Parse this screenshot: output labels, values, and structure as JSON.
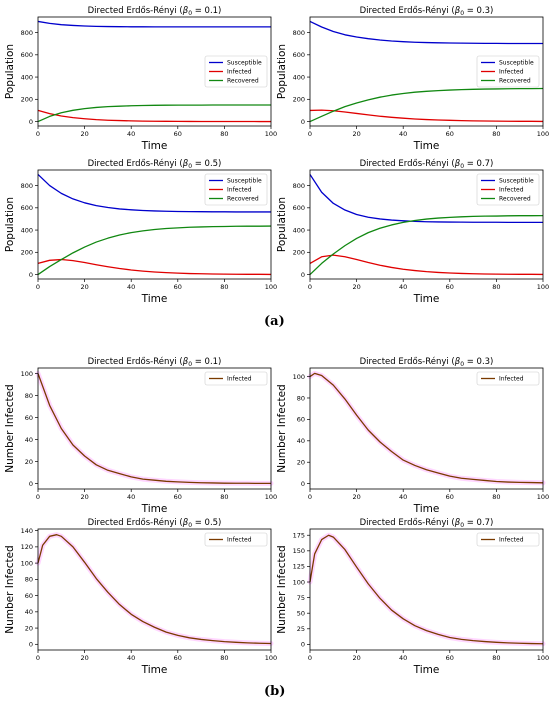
{
  "figure_labels": {
    "a": "(a)",
    "b": "(b)"
  },
  "colors": {
    "Susceptible": "#0000cc",
    "Infected": "#e00000",
    "Recovered": "#118811",
    "infected_b": "#7a3a00",
    "glow": "#ffccff"
  },
  "chart_data": [
    {
      "type": "line",
      "panel": "a",
      "title": "Directed Erdős-Rényi (β0 = 0.1)",
      "title_prefix": "Directed Erdős-Rényi (",
      "beta": "= 0.1",
      "title_suffix": ")",
      "xlabel": "Time",
      "ylabel": "Population",
      "xlim": [
        0,
        100
      ],
      "ylim": [
        -40,
        940
      ],
      "xticks": [
        0,
        20,
        40,
        60,
        80,
        100
      ],
      "yticks": [
        0,
        200,
        400,
        600,
        800
      ],
      "legend": "center-right",
      "x": [
        0,
        5,
        10,
        15,
        20,
        25,
        30,
        35,
        40,
        45,
        50,
        55,
        60,
        65,
        70,
        75,
        80,
        85,
        90,
        95,
        100
      ],
      "series": [
        {
          "name": "Susceptible",
          "color": "#0000cc",
          "values": [
            900,
            883,
            871,
            864,
            859,
            856,
            854,
            853,
            852,
            852,
            851,
            851,
            851,
            851,
            851,
            851,
            851,
            851,
            851,
            851,
            851
          ]
        },
        {
          "name": "Infected",
          "color": "#e00000",
          "values": [
            100,
            71,
            50,
            35,
            25,
            17,
            12,
            9,
            6,
            4,
            3,
            2,
            1.5,
            1,
            0.7,
            0.5,
            0.3,
            0.2,
            0.2,
            0.1,
            0.1
          ]
        },
        {
          "name": "Recovered",
          "color": "#118811",
          "values": [
            0,
            46,
            79,
            101,
            116,
            127,
            134,
            138,
            142,
            144,
            146,
            147,
            148,
            148,
            148,
            149,
            149,
            149,
            149,
            149,
            149
          ]
        }
      ]
    },
    {
      "type": "line",
      "panel": "a",
      "title": "Directed Erdős-Rényi (β0 = 0.3)",
      "title_prefix": "Directed Erdős-Rényi (",
      "beta": "= 0.3",
      "title_suffix": ")",
      "xlabel": "Time",
      "ylabel": "Population",
      "xlim": [
        0,
        100
      ],
      "ylim": [
        -40,
        940
      ],
      "xticks": [
        0,
        20,
        40,
        60,
        80,
        100
      ],
      "yticks": [
        0,
        200,
        400,
        600,
        800
      ],
      "legend": "center-right",
      "x": [
        0,
        5,
        10,
        15,
        20,
        25,
        30,
        35,
        40,
        45,
        50,
        55,
        60,
        65,
        70,
        75,
        80,
        85,
        90,
        95,
        100
      ],
      "series": [
        {
          "name": "Susceptible",
          "color": "#0000cc",
          "values": [
            900,
            850,
            810,
            780,
            760,
            745,
            733,
            724,
            718,
            713,
            710,
            708,
            706,
            705,
            704,
            703,
            703,
            702,
            702,
            702,
            702
          ]
        },
        {
          "name": "Infected",
          "color": "#e00000",
          "values": [
            100,
            103,
            97,
            86,
            73,
            60,
            48,
            38,
            30,
            23,
            18,
            14,
            11,
            8,
            6,
            5,
            4,
            3,
            2,
            2,
            1
          ]
        },
        {
          "name": "Recovered",
          "color": "#118811",
          "values": [
            0,
            47,
            93,
            134,
            167,
            195,
            219,
            238,
            252,
            264,
            272,
            278,
            283,
            287,
            290,
            292,
            293,
            295,
            296,
            296,
            297
          ]
        }
      ]
    },
    {
      "type": "line",
      "panel": "a",
      "title": "Directed Erdős-Rényi (β0 = 0.5)",
      "title_prefix": "Directed Erdős-Rényi (",
      "beta": "= 0.5",
      "title_suffix": ")",
      "xlabel": "Time",
      "ylabel": "Population",
      "xlim": [
        0,
        100
      ],
      "ylim": [
        -40,
        940
      ],
      "xticks": [
        0,
        20,
        40,
        60,
        80,
        100
      ],
      "yticks": [
        0,
        200,
        400,
        600,
        800
      ],
      "legend": "top-right",
      "x": [
        0,
        5,
        10,
        15,
        20,
        25,
        30,
        35,
        40,
        45,
        50,
        55,
        60,
        65,
        70,
        75,
        80,
        85,
        90,
        95,
        100
      ],
      "series": [
        {
          "name": "Susceptible",
          "color": "#0000cc",
          "values": [
            900,
            800,
            730,
            680,
            645,
            620,
            603,
            590,
            582,
            576,
            572,
            569,
            567,
            566,
            565,
            564,
            564,
            563,
            563,
            563,
            563
          ]
        },
        {
          "name": "Infected",
          "color": "#e00000",
          "values": [
            100,
            128,
            135,
            125,
            108,
            88,
            70,
            54,
            41,
            31,
            23,
            17,
            13,
            9,
            7,
            5,
            4,
            3,
            2,
            2,
            1
          ]
        },
        {
          "name": "Recovered",
          "color": "#118811",
          "values": [
            0,
            72,
            135,
            195,
            247,
            292,
            327,
            356,
            377,
            393,
            405,
            414,
            420,
            425,
            428,
            431,
            432,
            434,
            435,
            435,
            436
          ]
        }
      ]
    },
    {
      "type": "line",
      "panel": "a",
      "title": "Directed Erdős-Rényi (β0 = 0.7)",
      "title_prefix": "Directed Erdős-Rényi (",
      "beta": "= 0.7",
      "title_suffix": ")",
      "xlabel": "Time",
      "ylabel": "Population",
      "xlim": [
        0,
        100
      ],
      "ylim": [
        -40,
        940
      ],
      "xticks": [
        0,
        20,
        40,
        60,
        80,
        100
      ],
      "yticks": [
        0,
        200,
        400,
        600,
        800
      ],
      "legend": "top-right",
      "x": [
        0,
        5,
        10,
        15,
        20,
        25,
        30,
        35,
        40,
        45,
        50,
        55,
        60,
        65,
        70,
        75,
        80,
        85,
        90,
        95,
        100
      ],
      "series": [
        {
          "name": "Susceptible",
          "color": "#0000cc",
          "values": [
            900,
            740,
            640,
            580,
            540,
            515,
            500,
            490,
            483,
            478,
            475,
            473,
            472,
            471,
            470,
            470,
            470,
            469,
            469,
            469,
            469
          ]
        },
        {
          "name": "Infected",
          "color": "#e00000",
          "values": [
            100,
            160,
            175,
            160,
            135,
            108,
            84,
            64,
            48,
            36,
            26,
            19,
            14,
            10,
            7,
            5,
            4,
            3,
            2,
            2,
            1
          ]
        },
        {
          "name": "Recovered",
          "color": "#118811",
          "values": [
            0,
            100,
            185,
            260,
            325,
            377,
            416,
            446,
            469,
            486,
            499,
            508,
            514,
            519,
            523,
            525,
            526,
            528,
            529,
            529,
            530
          ]
        }
      ]
    },
    {
      "type": "line",
      "panel": "b",
      "title": "Directed Erdős-Rényi (β0 = 0.1)",
      "title_prefix": "Directed Erdős-Rényi (",
      "beta": "= 0.1",
      "title_suffix": ")",
      "xlabel": "Time",
      "ylabel": "Number Infected",
      "xlim": [
        0,
        100
      ],
      "ylim": [
        -5,
        105
      ],
      "xticks": [
        0,
        20,
        40,
        60,
        80,
        100
      ],
      "yticks": [
        0,
        20,
        40,
        60,
        80,
        100
      ],
      "legend": "top-right",
      "x": [
        0,
        5,
        10,
        15,
        20,
        25,
        30,
        35,
        40,
        45,
        50,
        55,
        60,
        65,
        70,
        75,
        80,
        85,
        90,
        95,
        100
      ],
      "series": [
        {
          "name": "Infected",
          "color": "#7a3a00",
          "values": [
            100,
            71,
            50,
            35,
            25,
            17,
            12,
            9,
            6,
            4,
            3,
            2,
            1.5,
            1,
            0.7,
            0.5,
            0.3,
            0.2,
            0.2,
            0.1,
            0.1
          ]
        }
      ]
    },
    {
      "type": "line",
      "panel": "b",
      "title": "Directed Erdős-Rényi (β0 = 0.3)",
      "title_prefix": "Directed Erdős-Rényi (",
      "beta": "= 0.3",
      "title_suffix": ")",
      "xlabel": "Time",
      "ylabel": "Number Infected",
      "xlim": [
        0,
        100
      ],
      "ylim": [
        -5,
        108
      ],
      "xticks": [
        0,
        20,
        40,
        60,
        80,
        100
      ],
      "yticks": [
        0,
        20,
        40,
        60,
        80,
        100
      ],
      "legend": "top-right",
      "x": [
        0,
        2,
        5,
        10,
        15,
        20,
        25,
        30,
        35,
        40,
        45,
        50,
        55,
        60,
        65,
        70,
        75,
        80,
        85,
        90,
        95,
        100
      ],
      "series": [
        {
          "name": "Infected",
          "color": "#7a3a00",
          "values": [
            100,
            103,
            101,
            92,
            79,
            64,
            50,
            39,
            30,
            22,
            17,
            13,
            10,
            7,
            5,
            4,
            3,
            2,
            1.5,
            1.2,
            1,
            0.8
          ]
        }
      ]
    },
    {
      "type": "line",
      "panel": "b",
      "title": "Directed Erdős-Rényi (β0 = 0.5)",
      "title_prefix": "Directed Erdős-Rényi (",
      "beta": "= 0.5",
      "title_suffix": ")",
      "xlabel": "Time",
      "ylabel": "Number Infected",
      "xlim": [
        0,
        100
      ],
      "ylim": [
        -7,
        142
      ],
      "xticks": [
        0,
        20,
        40,
        60,
        80,
        100
      ],
      "yticks": [
        0,
        20,
        40,
        60,
        80,
        100,
        120,
        140
      ],
      "legend": "top-right",
      "x": [
        0,
        2,
        5,
        8,
        10,
        15,
        20,
        25,
        30,
        35,
        40,
        45,
        50,
        55,
        60,
        65,
        70,
        75,
        80,
        85,
        90,
        95,
        100
      ],
      "series": [
        {
          "name": "Infected",
          "color": "#7a3a00",
          "values": [
            100,
            122,
            133,
            135,
            133,
            120,
            101,
            81,
            64,
            49,
            37,
            28,
            21,
            15,
            11,
            8,
            6,
            4.5,
            3.3,
            2.5,
            1.8,
            1.3,
            1
          ]
        }
      ]
    },
    {
      "type": "line",
      "panel": "b",
      "title": "Directed Erdős-Rényi (β0 = 0.7)",
      "title_prefix": "Directed Erdős-Rényi (",
      "beta": "= 0.7",
      "title_suffix": ")",
      "xlabel": "Time",
      "ylabel": "Number Infected",
      "xlim": [
        0,
        100
      ],
      "ylim": [
        -9,
        185
      ],
      "xticks": [
        0,
        20,
        40,
        60,
        80,
        100
      ],
      "yticks": [
        0,
        25,
        50,
        75,
        100,
        125,
        150,
        175
      ],
      "legend": "top-right",
      "x": [
        0,
        2,
        5,
        8,
        10,
        15,
        20,
        25,
        30,
        35,
        40,
        45,
        50,
        55,
        60,
        65,
        70,
        75,
        80,
        85,
        90,
        95,
        100
      ],
      "series": [
        {
          "name": "Infected",
          "color": "#7a3a00",
          "values": [
            100,
            145,
            168,
            175,
            172,
            152,
            124,
            97,
            74,
            55,
            41,
            30,
            22,
            16,
            11,
            8,
            6,
            4.5,
            3.3,
            2.4,
            1.8,
            1.3,
            1
          ]
        }
      ]
    }
  ]
}
